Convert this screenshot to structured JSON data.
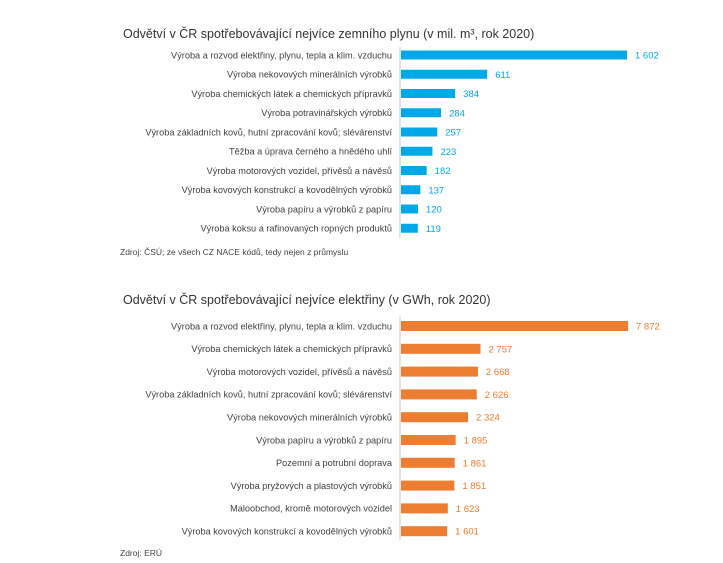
{
  "chart_data": [
    {
      "type": "bar",
      "orientation": "horizontal",
      "title": "Odvětví v ČR spotřebovávající nejvíce zemního plynu (v mil. m³, rok 2020)",
      "categories": [
        "Výroba a rozvod elektřiny, plynu, tepla a klim. vzduchu",
        "Výroba nekovových minerálních výrobků",
        "Výroba chemických látek a chemických přípravků",
        "Výroba potravinářských výrobků",
        "Výroba základních kovů, hutní zpracování kovů; slévárenství",
        "Těžba a úprava černého a hnědého uhlí",
        "Výroba motorových vozidel, přívěsů a návěsů",
        "Výroba kovových konstrukcí a kovodělných výrobků",
        "Výroba papíru a výrobků z papíru",
        "Výroba koksu a rafinovaných ropných produktů"
      ],
      "values": [
        1602,
        611,
        384,
        284,
        257,
        223,
        182,
        137,
        120,
        119
      ],
      "value_labels": [
        "1 602",
        "611",
        "384",
        "284",
        "257",
        "223",
        "182",
        "137",
        "120",
        "119"
      ],
      "color": "#00a8e8",
      "source": "Zdroj: ČSÚ; ze všech CZ NACE kódů, tedy nejen z průmyslu",
      "grid": false,
      "legend": "none"
    },
    {
      "type": "bar",
      "orientation": "horizontal",
      "title": "Odvětví v ČR spotřebovávající nejvíce elektřiny (v GWh, rok 2020)",
      "categories": [
        "Výroba a rozvod elektřiny, plynu, tepla a klim. vzduchu",
        "Výroba chemických látek a chemických přípravků",
        "Výroba motorových vozidel, přívěsů a návěsů",
        "Výroba základních kovů, hutní zpracování kovů; slévárenství",
        "Výroba nekovových minerálních výrobků",
        "Výroba papíru a výrobků z papíru",
        "Pozemní a potrubní doprava",
        "Výroba pryžových a plastových výrobků",
        "Maloobchod, kromě motorových vozidel",
        "Výroba kovových konstrukcí a kovodělných výrobků"
      ],
      "values": [
        7872,
        2757,
        2668,
        2626,
        2324,
        1895,
        1861,
        1851,
        1623,
        1601
      ],
      "value_labels": [
        "7 872",
        "2 757",
        "2 668",
        "2 626",
        "2 324",
        "1 895",
        "1 861",
        "1 851",
        "1 623",
        "1 601"
      ],
      "color": "#ed7d31",
      "source": "Zdroj: ERÚ",
      "grid": false,
      "legend": "none"
    }
  ]
}
